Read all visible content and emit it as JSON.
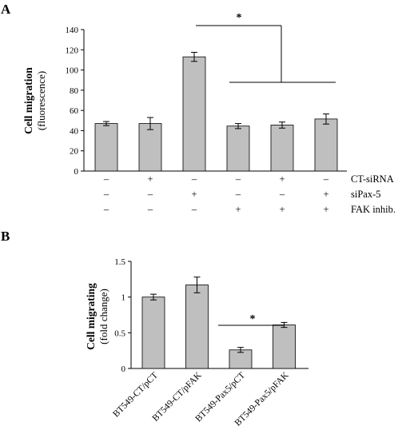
{
  "chart_data": [
    {
      "type": "bar",
      "panel_label": "A",
      "ylabel": "Cell migration",
      "ylabel_unit": "(fluorescence)",
      "ylim": [
        0,
        140
      ],
      "y_ticks": [
        "0",
        "20",
        "40",
        "60",
        "80",
        "100",
        "120",
        "140"
      ],
      "values": [
        47,
        47,
        113,
        44.5,
        45.5,
        51.5
      ],
      "errors": [
        2,
        6,
        4.5,
        2.5,
        3,
        5
      ],
      "conditions": [
        {
          "label": "CT-siRNA",
          "signs": [
            "–",
            "+",
            "–",
            "–",
            "+",
            "–"
          ]
        },
        {
          "label": "siPax-5",
          "signs": [
            "–",
            "–",
            "+",
            "–",
            "–",
            "+"
          ]
        },
        {
          "label": "FAK inhib.",
          "signs": [
            "–",
            "–",
            "–",
            "+",
            "+",
            "+"
          ]
        }
      ],
      "significance": "*",
      "bar_color": "#bfbfbf",
      "grid": false
    },
    {
      "type": "bar",
      "panel_label": "B",
      "ylabel": "Cell migrating",
      "ylabel_unit": "(fold change)",
      "ylim": [
        0,
        1.5
      ],
      "y_ticks": [
        "0",
        "0.5",
        "1",
        "1.5"
      ],
      "categories": [
        "BT549-CT/pCT",
        "BT549-CT/pFAK",
        "BT549-Pax5/pCT",
        "BT549-Pax5/pFAK"
      ],
      "values": [
        1.0,
        1.17,
        0.26,
        0.61
      ],
      "errors": [
        0.04,
        0.11,
        0.035,
        0.035
      ],
      "significance": "*",
      "bar_color": "#bfbfbf",
      "grid": false
    }
  ]
}
